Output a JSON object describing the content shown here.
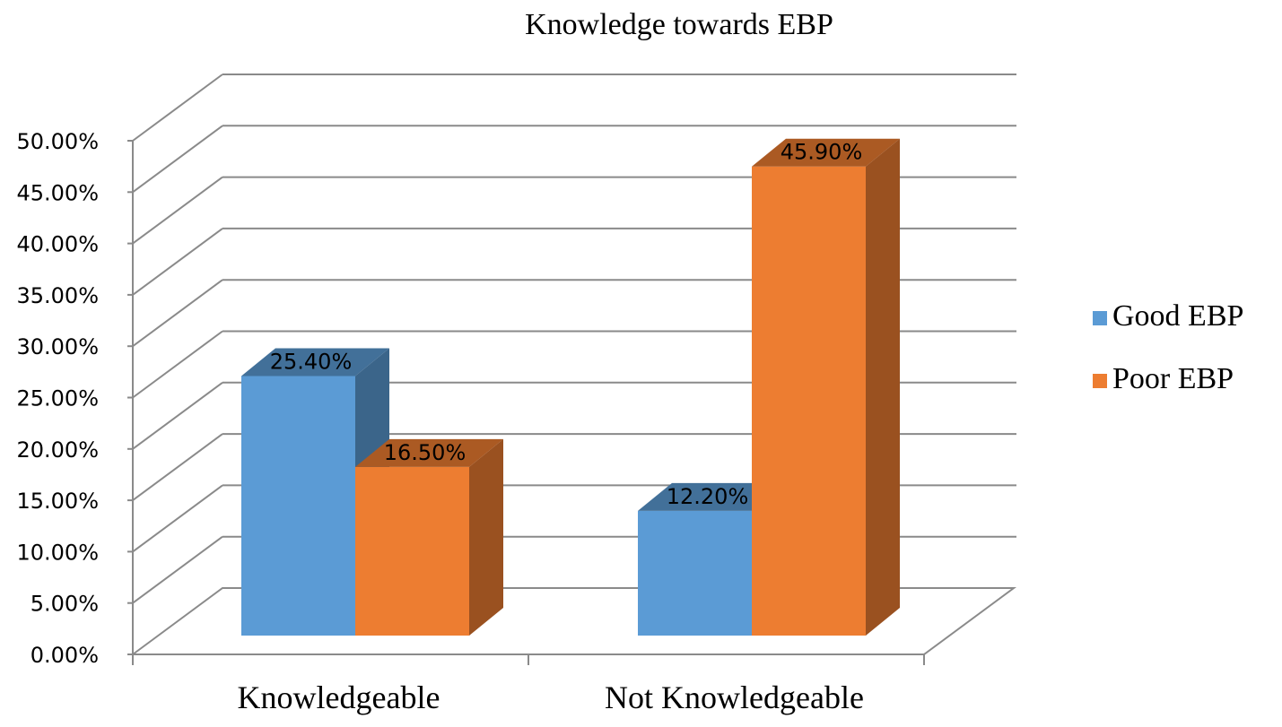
{
  "chart_data": {
    "type": "bar",
    "title": "Knowledge towards EBP",
    "categories": [
      "Knowledgeable",
      "Not Knowledgeable"
    ],
    "series": [
      {
        "name": "Good EBP",
        "values": [
          25.4,
          12.2
        ],
        "labels": [
          "25.40%",
          "12.20%"
        ],
        "color": "#5B9BD5"
      },
      {
        "name": "Poor EBP",
        "values": [
          16.5,
          45.9
        ],
        "labels": [
          "16.50%",
          "45.90%"
        ],
        "color": "#ED7D31"
      }
    ],
    "ylim": [
      0,
      50
    ],
    "yticks": [
      "0.00%",
      "5.00%",
      "10.00%",
      "15.00%",
      "20.00%",
      "25.00%",
      "30.00%",
      "35.00%",
      "40.00%",
      "45.00%",
      "50.00%"
    ],
    "grid": true,
    "legend": "right",
    "style": "3d-clustered-column"
  }
}
